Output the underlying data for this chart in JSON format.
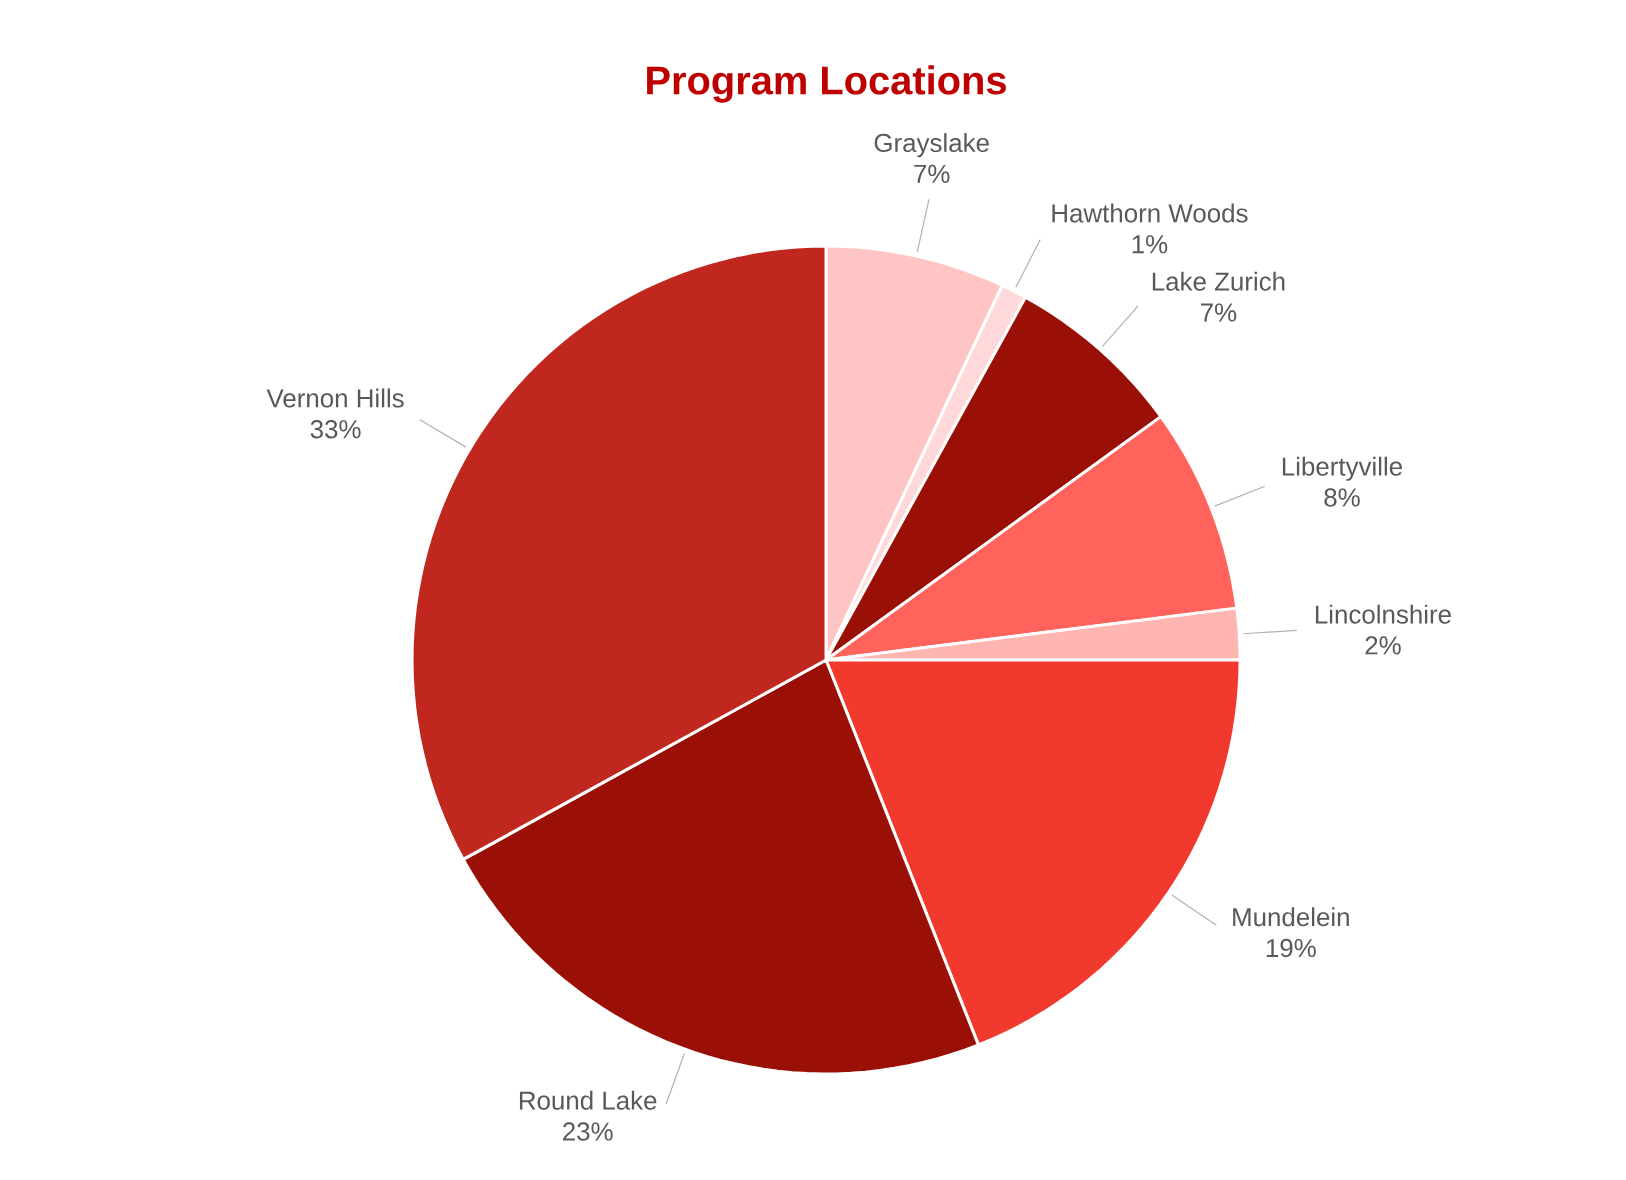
{
  "chart_data": {
    "type": "pie",
    "title": "Program Locations",
    "categories": [
      "Grayslake",
      "Hawthorn Woods",
      "Lake Zurich",
      "Libertyville",
      "Lincolnshire",
      "Mundelein",
      "Round Lake",
      "Vernon Hills"
    ],
    "values": [
      7,
      1,
      7,
      8,
      2,
      19,
      23,
      33
    ],
    "value_labels": [
      "7%",
      "1%",
      "7%",
      "8%",
      "2%",
      "19%",
      "23%",
      "33%"
    ],
    "colors": [
      "#ffc5c5",
      "#ffd9d9",
      "#9b1006",
      "#ff635b",
      "#ffb5b0",
      "#f2392d",
      "#9b1006",
      "#c0281f"
    ]
  }
}
